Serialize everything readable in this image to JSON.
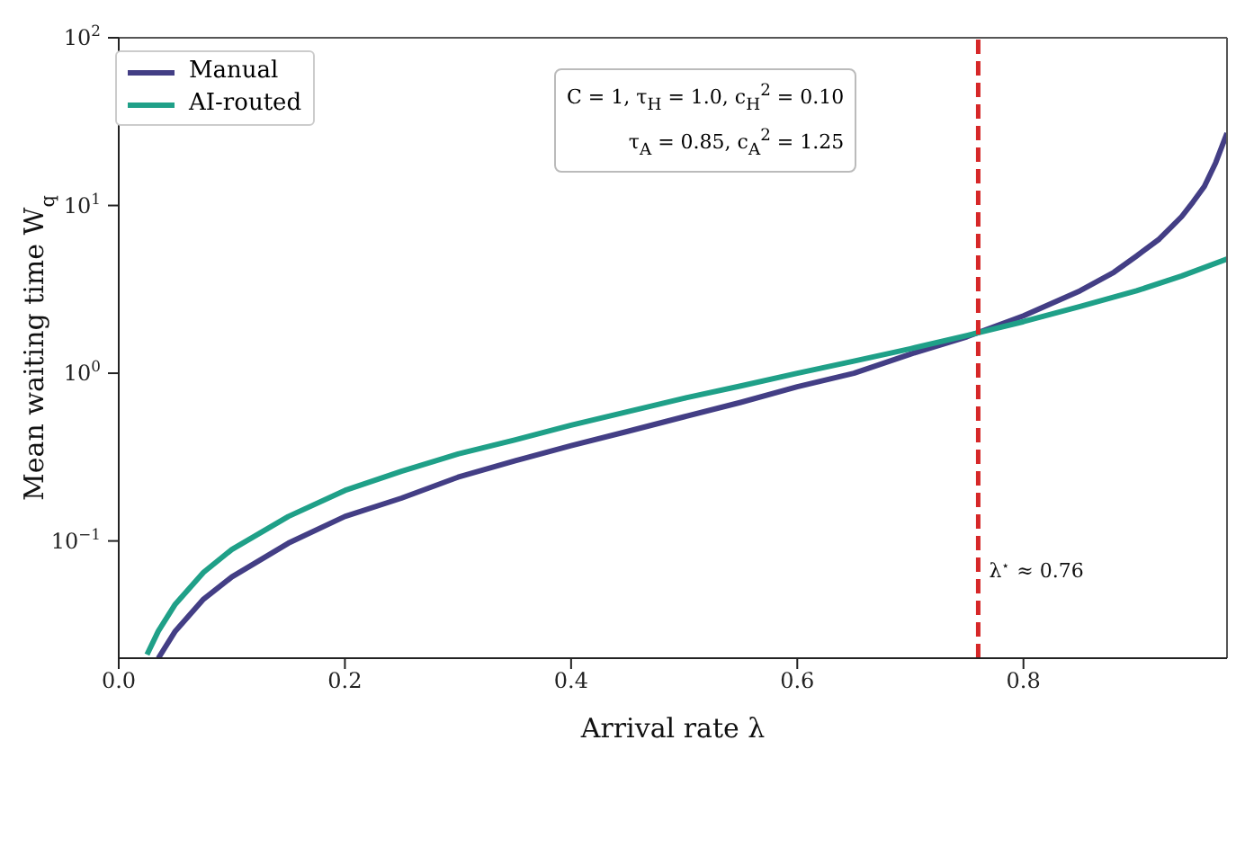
{
  "chart_data": {
    "type": "line",
    "xlabel": "Arrival rate λ",
    "ylabel": "Mean waiting time W$_{q}$",
    "log": "y",
    "xlim": [
      0,
      0.98
    ],
    "xticks": [
      {
        "value": 0,
        "label": "0.0"
      },
      0.2,
      0.4,
      0.6,
      0.8
    ],
    "ylim": [
      0.02,
      100
    ],
    "yticks": [
      {
        "value": 0.1,
        "label": "10$^{−1}$"
      },
      {
        "value": 1,
        "label": "10$^{0}$"
      },
      {
        "value": 10,
        "label": "10$^{1}$"
      },
      {
        "value": 100,
        "label": "10$^{2}$"
      }
    ],
    "grid": false,
    "legend": "top left",
    "marker": "none",
    "line_style": "solid",
    "series": [
      {
        "name": "Manual",
        "color": "#433e85",
        "x": [
          0.035,
          0.05,
          0.075,
          0.1,
          0.15,
          0.2,
          0.25,
          0.3,
          0.35,
          0.4,
          0.45,
          0.5,
          0.55,
          0.6,
          0.65,
          0.7,
          0.75,
          0.8,
          0.85,
          0.88,
          0.9,
          0.92,
          0.94,
          0.95,
          0.96,
          0.97,
          0.98
        ],
        "values": [
          0.02,
          0.029,
          0.045,
          0.061,
          0.097,
          0.14,
          0.18,
          0.24,
          0.3,
          0.37,
          0.45,
          0.55,
          0.67,
          0.83,
          1.0,
          1.3,
          1.65,
          2.2,
          3.1,
          4.0,
          5.0,
          6.3,
          8.6,
          10.5,
          13,
          18,
          27
        ]
      },
      {
        "name": "AI-routed",
        "color": "#1fa088",
        "x": [
          0.025,
          0.035,
          0.05,
          0.075,
          0.1,
          0.15,
          0.2,
          0.25,
          0.3,
          0.35,
          0.4,
          0.45,
          0.5,
          0.55,
          0.6,
          0.65,
          0.7,
          0.75,
          0.8,
          0.85,
          0.9,
          0.94,
          0.98
        ],
        "values": [
          0.021,
          0.029,
          0.042,
          0.065,
          0.089,
          0.14,
          0.2,
          0.26,
          0.33,
          0.4,
          0.49,
          0.59,
          0.71,
          0.84,
          1.0,
          1.18,
          1.4,
          1.68,
          2.03,
          2.5,
          3.1,
          3.8,
          4.8
        ]
      }
    ],
    "ref_lines": [
      {
        "axis": "x",
        "value": 0.76,
        "label": "λ$^{⋆}$ ≈ 0.76",
        "color": "#d62728",
        "line_style": "dashed"
      }
    ],
    "annotations": [
      "C = 1, τ$_{H}$ = 1.0, c$_{H}$$^{2}$ = 0.10",
      "τ$_{A}$ = 0.85, c$_{A}$$^{2}$ = 1.25"
    ]
  }
}
